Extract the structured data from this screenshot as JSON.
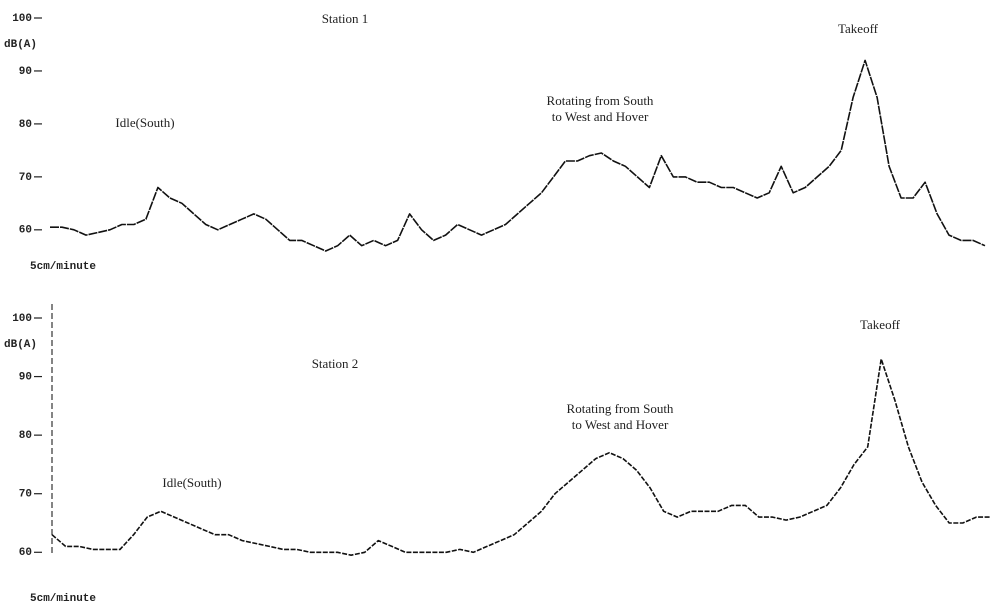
{
  "chart_data": [
    {
      "type": "line",
      "title": "Station 1",
      "ylabel": "dB(A)",
      "xlabel": "5cm/minute",
      "ylim": [
        56,
        100
      ],
      "yticks": [
        60,
        70,
        80,
        90,
        100
      ],
      "color": "#111",
      "annotations": [
        {
          "lines": [
            "Idle(South)"
          ],
          "at": 9
        },
        {
          "lines": [
            "Rotating from South",
            "to West and Hover"
          ],
          "at": 46
        },
        {
          "lines": [
            "Takeoff"
          ],
          "at": 71
        }
      ],
      "values": [
        60.5,
        60.5,
        60,
        59,
        59.5,
        60,
        61,
        61,
        62,
        68,
        66,
        65,
        63,
        61,
        60,
        61,
        62,
        63,
        62,
        60,
        58,
        58,
        57,
        56,
        57,
        59,
        57,
        58,
        57,
        58,
        63,
        60,
        58,
        59,
        61,
        60,
        59,
        60,
        61,
        63,
        65,
        67,
        70,
        73,
        73,
        74,
        74.5,
        73,
        72,
        70,
        68,
        74,
        70,
        70,
        69,
        69,
        68,
        68,
        67,
        66,
        67,
        72,
        67,
        68,
        70,
        72,
        75,
        85,
        92,
        85,
        72,
        66,
        66,
        69,
        63,
        59,
        58,
        58,
        57
      ]
    },
    {
      "type": "line",
      "title": "Station 2",
      "ylabel": "dB(A)",
      "xlabel": "5cm/minute",
      "ylim": [
        58,
        100
      ],
      "yticks": [
        60,
        70,
        80,
        90,
        100
      ],
      "color": "#111",
      "annotations": [
        {
          "lines": [
            "Idle(South)"
          ],
          "at": 8
        },
        {
          "lines": [
            "Rotating from South",
            "to West and Hover"
          ],
          "at": 41
        },
        {
          "lines": [
            "Takeoff"
          ],
          "at": 64
        }
      ],
      "values": [
        63,
        61,
        61,
        60.5,
        60.5,
        60.5,
        63,
        66,
        67,
        66,
        65,
        64,
        63,
        63,
        62,
        61.5,
        61,
        60.5,
        60.5,
        60,
        60,
        60,
        59.5,
        60,
        62,
        61,
        60,
        60,
        60,
        60,
        60.5,
        60,
        61,
        62,
        63,
        65,
        67,
        70,
        72,
        74,
        76,
        77,
        76,
        74,
        71,
        67,
        66,
        67,
        67,
        67,
        68,
        68,
        66,
        66,
        65.5,
        66,
        67,
        68,
        71,
        75,
        78,
        93,
        86,
        78,
        72,
        68,
        65,
        65,
        66,
        66
      ]
    }
  ]
}
